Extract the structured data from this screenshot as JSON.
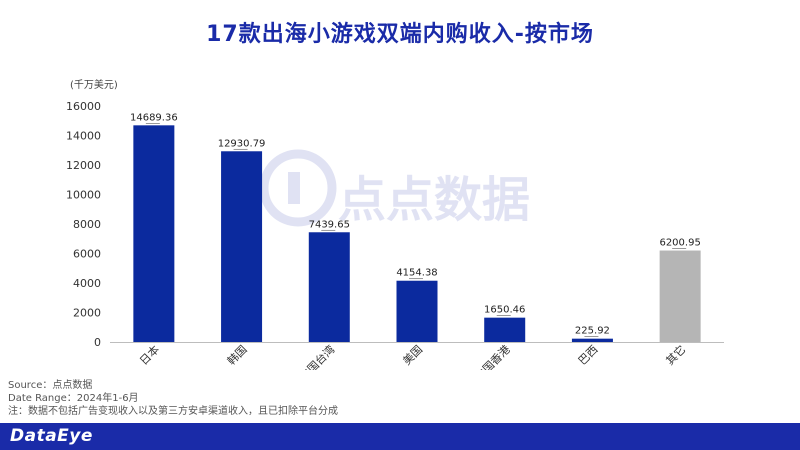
{
  "title": "17款出海小游戏双端内购收入-按市场",
  "unit_label": "(千万美元)",
  "watermark_text": "点点数据",
  "notes": {
    "source": "Source：点点数据",
    "date_range": "Date Range：2024年1-6月",
    "remark": "注：数据不包括广告变现收入以及第三方安卓渠道收入，且已扣除平台分成"
  },
  "brand": "DataEye",
  "colors": {
    "primary": "#0b2a9e",
    "other": "#b5b5b5",
    "title": "#1a2ba8"
  },
  "chart_data": {
    "type": "bar",
    "categories": [
      "日本",
      "韩国",
      "中国台湾",
      "美国",
      "中国香港",
      "巴西",
      "其它"
    ],
    "values": [
      14689.36,
      12930.79,
      7439.65,
      4154.38,
      1650.46,
      225.92,
      6200.95
    ],
    "value_labels": [
      "14689.36",
      "12930.79",
      "7439.65",
      "4154.38",
      "1650.46",
      "225.92",
      "6200.95"
    ],
    "ylim": [
      0,
      16000
    ],
    "yticks": [
      0,
      2000,
      4000,
      6000,
      8000,
      10000,
      12000,
      14000,
      16000
    ],
    "grid": false,
    "legend": "none"
  }
}
